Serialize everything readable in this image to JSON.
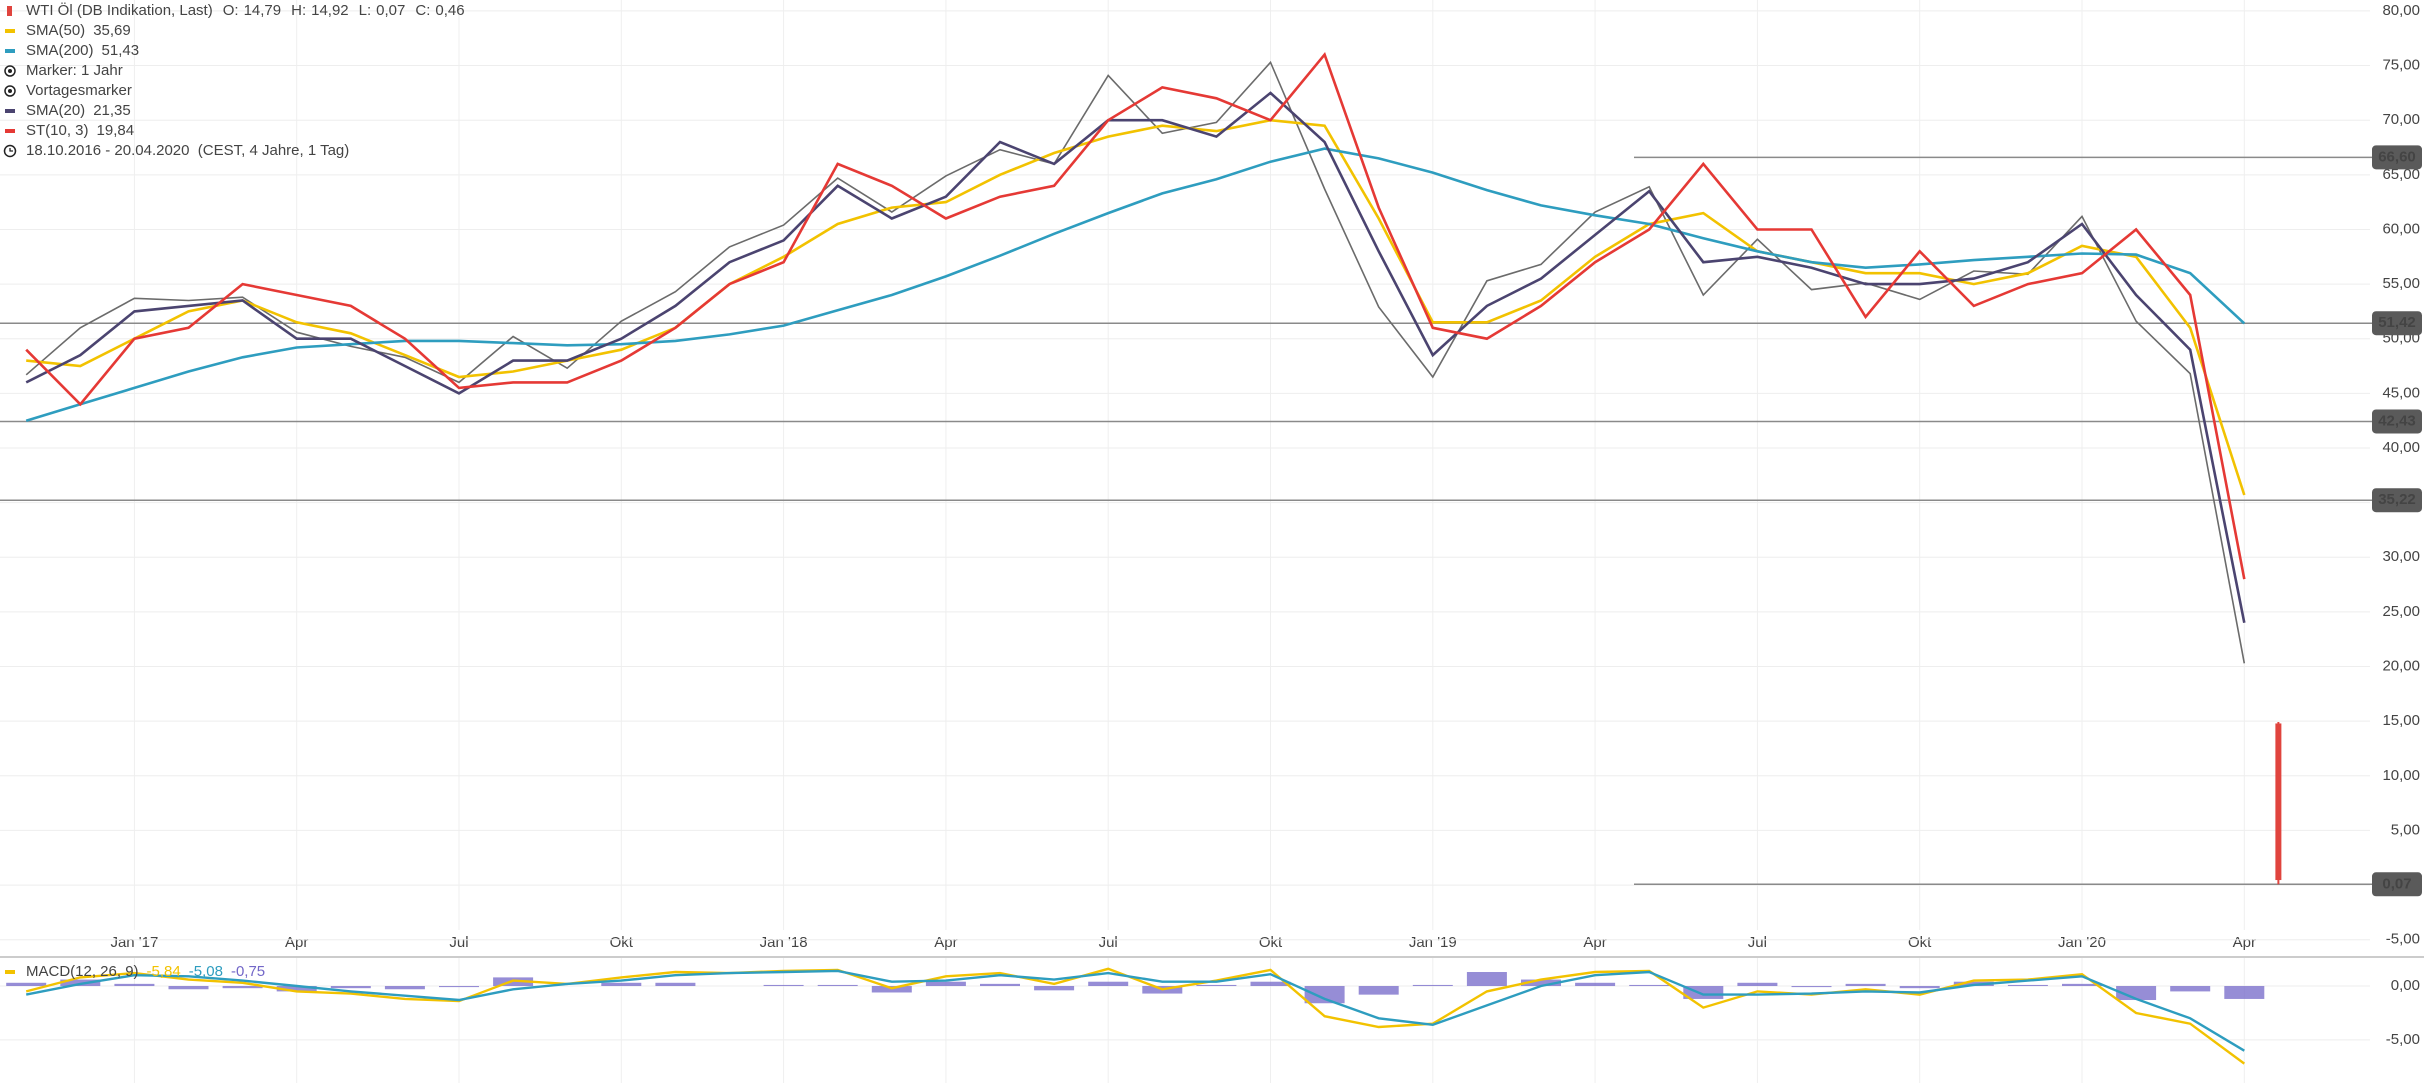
{
  "chart_data": [
    {
      "type": "line",
      "categories": [
        null,
        null,
        "Jan '17",
        null,
        null,
        "Apr",
        null,
        null,
        "Jul",
        null,
        null,
        "Okt",
        null,
        null,
        "Jan '18",
        null,
        null,
        "Apr",
        null,
        null,
        "Jul",
        null,
        null,
        "Okt",
        null,
        null,
        "Jan '19",
        null,
        null,
        "Apr",
        null,
        null,
        "Jul",
        null,
        null,
        "Okt",
        null,
        null,
        "Jan '20",
        null,
        null,
        "Apr"
      ],
      "ohlc": {
        "name": "WTI Öl (DB Indikation, Last)",
        "color": "#e0443e",
        "keys": [
          "O:",
          "H:",
          "L:",
          "C:"
        ],
        "values": [
          14.79,
          14.92,
          0.07,
          0.46
        ],
        "value_labels": [
          "14,79",
          "14,92",
          "0,07",
          "0,46"
        ]
      },
      "series": [
        {
          "color": "#6b6b6b",
          "values": [
            46.7,
            51,
            53.7,
            53.5,
            53.8,
            50.6,
            49.3,
            48.3,
            46.0,
            50.2,
            47.3,
            51.6,
            54.3,
            58.4,
            60.4,
            64.7,
            61.6,
            64.9,
            67.3,
            66.0,
            74.1,
            68.8,
            69.8,
            75.3,
            63.7,
            52.9,
            46.5,
            55.3,
            56.8,
            61.6,
            63.9,
            54.0,
            59.1,
            54.5,
            55.1,
            53.6,
            56.2,
            55.9,
            61.2,
            51.6,
            46.8,
            20.3
          ]
        },
        {
          "name": "SMA(50)",
          "color": "#f2c200",
          "last_value": 35.69,
          "last_label": "35,69",
          "values": [
            48,
            47.5,
            50,
            52.5,
            53.5,
            51.5,
            50.5,
            48.5,
            46.5,
            47,
            48,
            49,
            51,
            55,
            57.5,
            60.5,
            62,
            62.5,
            65,
            67,
            68.5,
            69.5,
            69,
            70,
            69.5,
            61,
            51.5,
            51.5,
            53.5,
            57.5,
            60.5,
            61.5,
            58,
            57,
            56,
            56,
            55,
            56,
            58.5,
            57.5,
            51,
            35.7
          ]
        },
        {
          "name": "SMA(200)",
          "color": "#2e9dbf",
          "last_value": 51.43,
          "last_label": "51,43",
          "values": [
            42.5,
            44,
            45.5,
            47,
            48.3,
            49.2,
            49.5,
            49.8,
            49.8,
            49.6,
            49.4,
            49.5,
            49.8,
            50.4,
            51.2,
            52.6,
            54,
            55.7,
            57.6,
            59.6,
            61.5,
            63.3,
            64.6,
            66.2,
            67.4,
            66.5,
            65.2,
            63.6,
            62.2,
            61.3,
            60.5,
            59.2,
            58,
            57,
            56.5,
            56.8,
            57.2,
            57.5,
            57.8,
            57.7,
            56,
            51.4
          ]
        },
        {
          "name": "SMA(20)",
          "color": "#4b4470",
          "last_value": 21.35,
          "last_label": "21,35",
          "values": [
            46,
            48.5,
            52.5,
            53,
            53.5,
            50,
            50,
            47.5,
            45,
            48,
            48,
            50,
            53,
            57,
            59,
            64,
            61,
            63,
            68,
            66,
            70,
            70,
            68.5,
            72.5,
            68,
            58,
            48.5,
            53,
            55.5,
            59.5,
            63.5,
            57,
            57.5,
            56.5,
            55,
            55,
            55.5,
            57,
            60.5,
            54,
            49,
            24
          ]
        },
        {
          "name": "ST(10, 3)",
          "color": "#e53935",
          "last_value": 19.84,
          "last_label": "19,84",
          "values": [
            49,
            44,
            50,
            51,
            55,
            54,
            53,
            50,
            45.5,
            46,
            46,
            48,
            51,
            55,
            57,
            66,
            64,
            61,
            63,
            64,
            70,
            73,
            72,
            70,
            76,
            62,
            51,
            50,
            53,
            57,
            60,
            66,
            60,
            60,
            52,
            58,
            53,
            55,
            56,
            60,
            54,
            28
          ]
        }
      ],
      "notes": [
        "Marker: 1 Jahr",
        "Vortagesmarker"
      ],
      "range": "18.10.2016 - 20.04.2020  (CEST, 4 Jahre, 1 Tag)",
      "levels": [
        {
          "value": 66.6,
          "label": "66,60"
        },
        {
          "value": 51.42,
          "label": "51,42"
        },
        {
          "value": 42.43,
          "label": "42,43"
        },
        {
          "value": 35.22,
          "label": "35,22"
        },
        {
          "value": 0.07,
          "label": "0,07"
        }
      ],
      "ylim": [
        -6.4,
        81
      ],
      "yticks": [
        {
          "value": -5,
          "label": "-5,00"
        },
        {
          "value": 0,
          "label": "0,00"
        },
        {
          "value": 5,
          "label": "5,00"
        },
        {
          "value": 10,
          "label": "10,00"
        },
        {
          "value": 15,
          "label": "15,00"
        },
        {
          "value": 20,
          "label": "20,00"
        },
        {
          "value": 25,
          "label": "25,00"
        },
        {
          "value": 30,
          "label": "30,00"
        },
        {
          "value": 35,
          "label": "35,00"
        },
        {
          "value": 40,
          "label": "40,00"
        },
        {
          "value": 45,
          "label": "45,00"
        },
        {
          "value": 50,
          "label": "50,00"
        },
        {
          "value": 55,
          "label": "55,00"
        },
        {
          "value": 60,
          "label": "60,00"
        },
        {
          "value": 65,
          "label": "65,00"
        },
        {
          "value": 70,
          "label": "70,00"
        },
        {
          "value": 75,
          "label": "75,00"
        },
        {
          "value": 80,
          "label": "80,00"
        }
      ],
      "grid": true
    },
    {
      "type": "line",
      "series": [
        {
          "name": "MACD(12, 26, 9)",
          "color": "#f2c200",
          "last_value": -5.84,
          "last_label": "-5,84",
          "values": [
            -0.5,
            0.8,
            1.2,
            0.6,
            0.3,
            -0.5,
            -0.7,
            -1.2,
            -1.4,
            0.5,
            0.2,
            0.8,
            1.3,
            1.2,
            1.4,
            1.5,
            -0.2,
            0.9,
            1.2,
            0.2,
            1.6,
            -0.3,
            0.5,
            1.5,
            -2.8,
            -3.8,
            -3.5,
            -0.5,
            0.6,
            1.3,
            1.4,
            -2,
            -0.5,
            -0.8,
            -0.3,
            -0.8,
            0.5,
            0.6,
            1.1,
            -2.5,
            -3.5,
            -7.2
          ]
        },
        {
          "color": "#2e9dbf",
          "last_value": -5.08,
          "last_label": "-5,08",
          "values": [
            -0.8,
            0.2,
            1.0,
            0.9,
            0.5,
            0,
            -0.5,
            -0.9,
            -1.3,
            -0.3,
            0.2,
            0.5,
            1.0,
            1.2,
            1.3,
            1.4,
            0.4,
            0.5,
            1.0,
            0.6,
            1.2,
            0.4,
            0.4,
            1.1,
            -1.2,
            -3.0,
            -3.6,
            -1.8,
            0,
            1.0,
            1.3,
            -0.8,
            -0.8,
            -0.7,
            -0.5,
            -0.6,
            0.1,
            0.5,
            0.9,
            -1.2,
            -3.0,
            -6.0
          ]
        },
        {
          "type": "bar",
          "color": "#7367c8",
          "last_value": -0.75,
          "last_label": "-0,75",
          "values": [
            0.3,
            0.6,
            0.2,
            -0.3,
            -0.2,
            -0.5,
            -0.2,
            -0.3,
            -0.1,
            0.8,
            0,
            0.3,
            0.3,
            0,
            0.1,
            0.1,
            -0.6,
            0.4,
            0.2,
            -0.4,
            0.4,
            -0.7,
            0.1,
            0.4,
            -1.6,
            -0.8,
            0.1,
            1.3,
            0.6,
            0.3,
            0.1,
            -1.2,
            0.3,
            -0.1,
            0.2,
            -0.2,
            0.4,
            0.1,
            0.2,
            -1.3,
            -0.5,
            -1.2
          ]
        }
      ],
      "ylim": [
        -9,
        2.6
      ],
      "yticks": [
        {
          "value": 0,
          "label": "0,00"
        },
        {
          "value": -5,
          "label": "-5,00"
        }
      ],
      "grid": true
    }
  ]
}
